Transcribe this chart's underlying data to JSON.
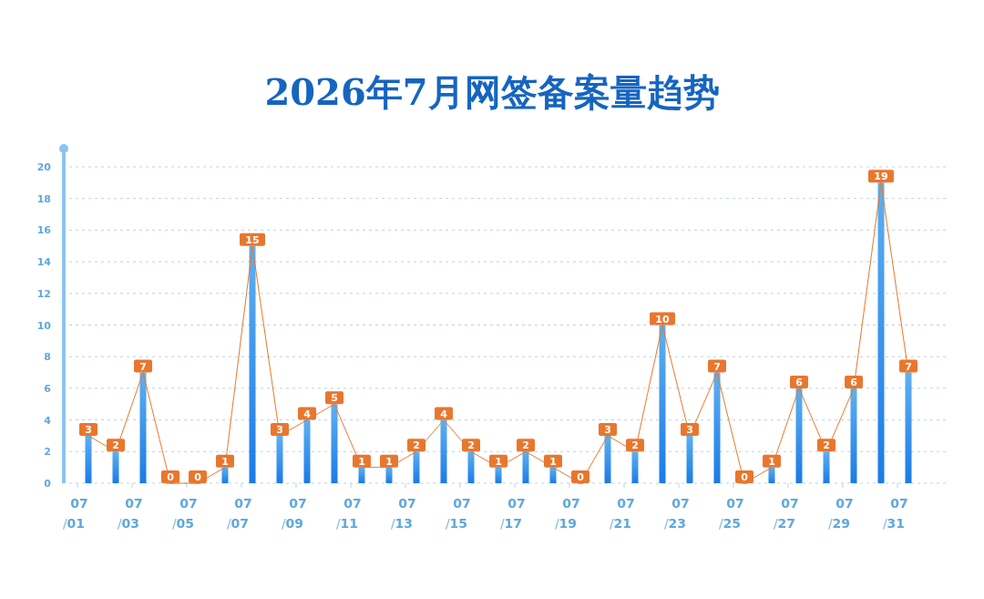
{
  "chart_data": {
    "type": "bar",
    "title": "2026年7月网签备案量趋势",
    "categories": [
      "07/01",
      null,
      "07/03",
      null,
      "07/05",
      null,
      "07/07",
      null,
      "07/09",
      null,
      "07/11",
      null,
      "07/13",
      null,
      "07/15",
      null,
      "07/17",
      null,
      "07/19",
      null,
      "07/21",
      null,
      "07/23",
      null,
      "07/25",
      null,
      "07/27",
      null,
      "07/29",
      null,
      "07/31"
    ],
    "series": [
      {
        "color": "#1a7be8",
        "values": [
          3,
          2,
          7,
          0,
          0,
          1,
          15,
          3,
          4,
          5,
          1,
          1,
          2,
          4,
          2,
          1,
          2,
          1,
          0,
          3,
          2,
          10,
          3,
          7,
          0,
          1,
          6,
          2,
          6,
          19,
          7
        ]
      },
      {
        "type": "line",
        "color": "#e8772e",
        "values": [
          3,
          2,
          7,
          0,
          0,
          1,
          15,
          3,
          4,
          5,
          1,
          1,
          2,
          4,
          2,
          1,
          2,
          1,
          0,
          3,
          2,
          10,
          3,
          7,
          0,
          1,
          6,
          2,
          6,
          19,
          7
        ],
        "value_labels": [
          "3",
          "2",
          "7",
          "0",
          "0",
          "1",
          "15",
          "3",
          "4",
          "5",
          "1",
          "1",
          "2",
          "4",
          "2",
          "1",
          "2",
          "1",
          "0",
          "3",
          "2",
          "10",
          "3",
          "7",
          "0",
          "1",
          "6",
          "2",
          "6",
          "19",
          "7"
        ]
      }
    ],
    "ylim": [
      0,
      20
    ],
    "yticks": [
      0,
      2,
      4,
      6,
      8,
      10,
      12,
      14,
      16,
      18,
      20
    ],
    "grid": "y",
    "marker": "none"
  }
}
